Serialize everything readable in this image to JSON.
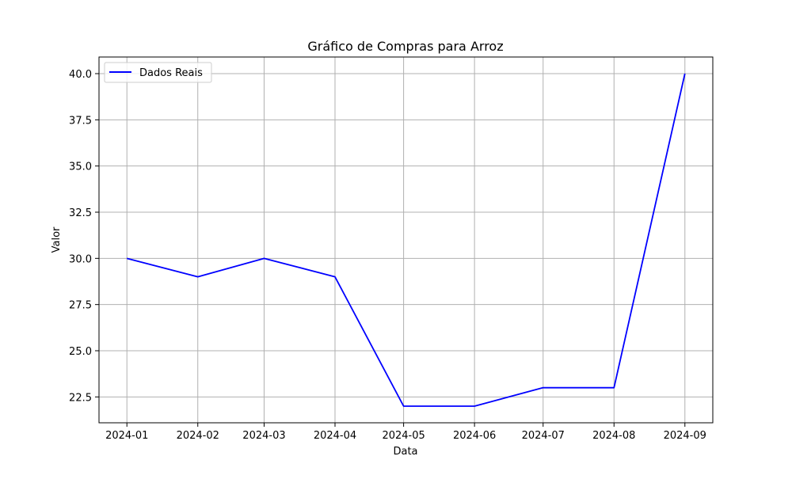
{
  "chart_data": {
    "type": "line",
    "title": "Gráfico de Compras para Arroz",
    "xlabel": "Data",
    "ylabel": "Valor",
    "x": [
      "2024-01",
      "2024-02",
      "2024-03",
      "2024-04",
      "2024-05",
      "2024-06",
      "2024-07",
      "2024-08",
      "2024-09"
    ],
    "x_dates": [
      "2024-01-01",
      "2024-02-01",
      "2024-03-01",
      "2024-04-01",
      "2024-05-01",
      "2024-06-01",
      "2024-07-01",
      "2024-08-01",
      "2024-09-01"
    ],
    "series": [
      {
        "name": "Dados Reais",
        "color": "#0000ff",
        "values": [
          30,
          29,
          30,
          29,
          22,
          22,
          23,
          23,
          40
        ]
      }
    ],
    "ylim": [
      21.1,
      40.9
    ],
    "yticks": [
      "22.5",
      "25.0",
      "27.5",
      "30.0",
      "32.5",
      "35.0",
      "37.5",
      "40.0"
    ],
    "ytick_values": [
      22.5,
      25.0,
      27.5,
      30.0,
      32.5,
      35.0,
      37.5,
      40.0
    ],
    "grid": true,
    "legend_position": "top-left"
  }
}
